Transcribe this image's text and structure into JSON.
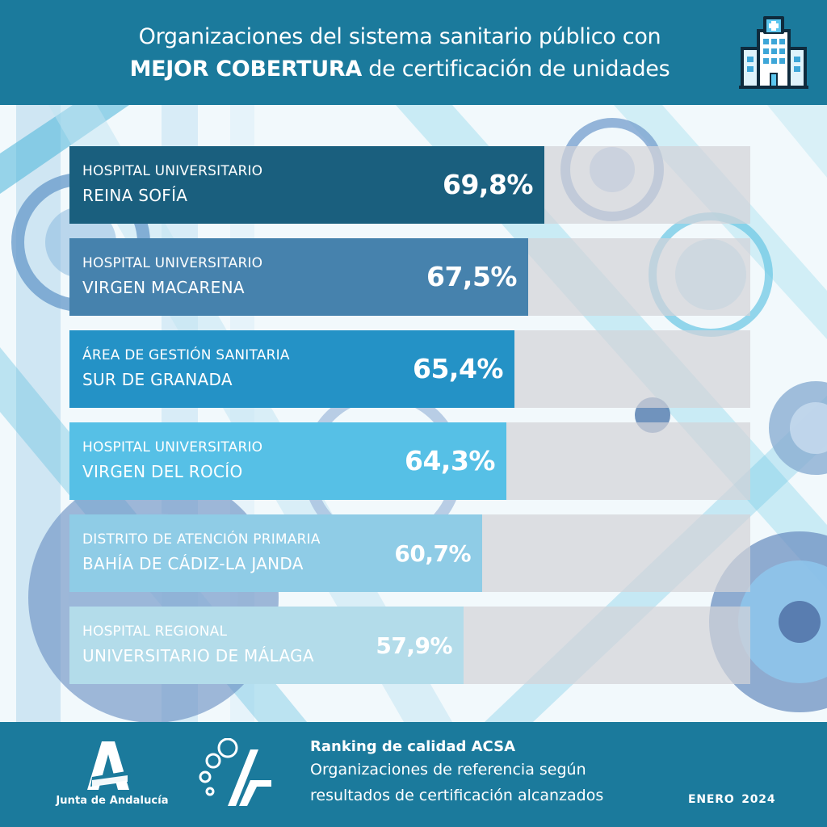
{
  "header": {
    "title_line1": "Organizaciones del sistema sanitario público con",
    "title_highlight": "MEJOR COBERTURA",
    "title_line2_rest": " de certificación de unidades",
    "icon": "hospital-icon"
  },
  "colors": {
    "header_bg": "#1b7a9c",
    "track": "#d2d2d8",
    "bars": [
      "#1a5f7e",
      "#4682ad",
      "#2492c6",
      "#56c0e6",
      "#8fcce6",
      "#b3dcea"
    ]
  },
  "chart_data": {
    "type": "bar",
    "orientation": "horizontal",
    "xlim": [
      0,
      100
    ],
    "categories": [
      {
        "line1": "HOSPITAL UNIVERSITARIO",
        "line2": "REINA SOFÍA"
      },
      {
        "line1": "HOSPITAL UNIVERSITARIO",
        "line2": "VIRGEN MACARENA"
      },
      {
        "line1": "ÁREA DE GESTIÓN SANITARIA",
        "line2": "SUR DE GRANADA"
      },
      {
        "line1": "HOSPITAL UNIVERSITARIO",
        "line2": "VIRGEN DEL ROCÍO"
      },
      {
        "line1": "DISTRITO DE ATENCIÓN PRIMARIA",
        "line2": "BAHÍA DE CÁDIZ-LA JANDA"
      },
      {
        "line1": "HOSPITAL REGIONAL",
        "line2": "UNIVERSITARIO DE MÁLAGA"
      }
    ],
    "values": [
      69.8,
      67.5,
      65.4,
      64.3,
      60.7,
      57.9
    ],
    "value_labels": [
      "69,8%",
      "67,5%",
      "65,4%",
      "64,3%",
      "60,7%",
      "57,9%"
    ]
  },
  "footer": {
    "logo_name": "Junta de Andalucía",
    "ranking_title": "Ranking de calidad ACSA",
    "ranking_sub1": "Organizaciones de referencia según",
    "ranking_sub2": "resultados de certificación alcanzados",
    "date": "ENERO 2024"
  }
}
